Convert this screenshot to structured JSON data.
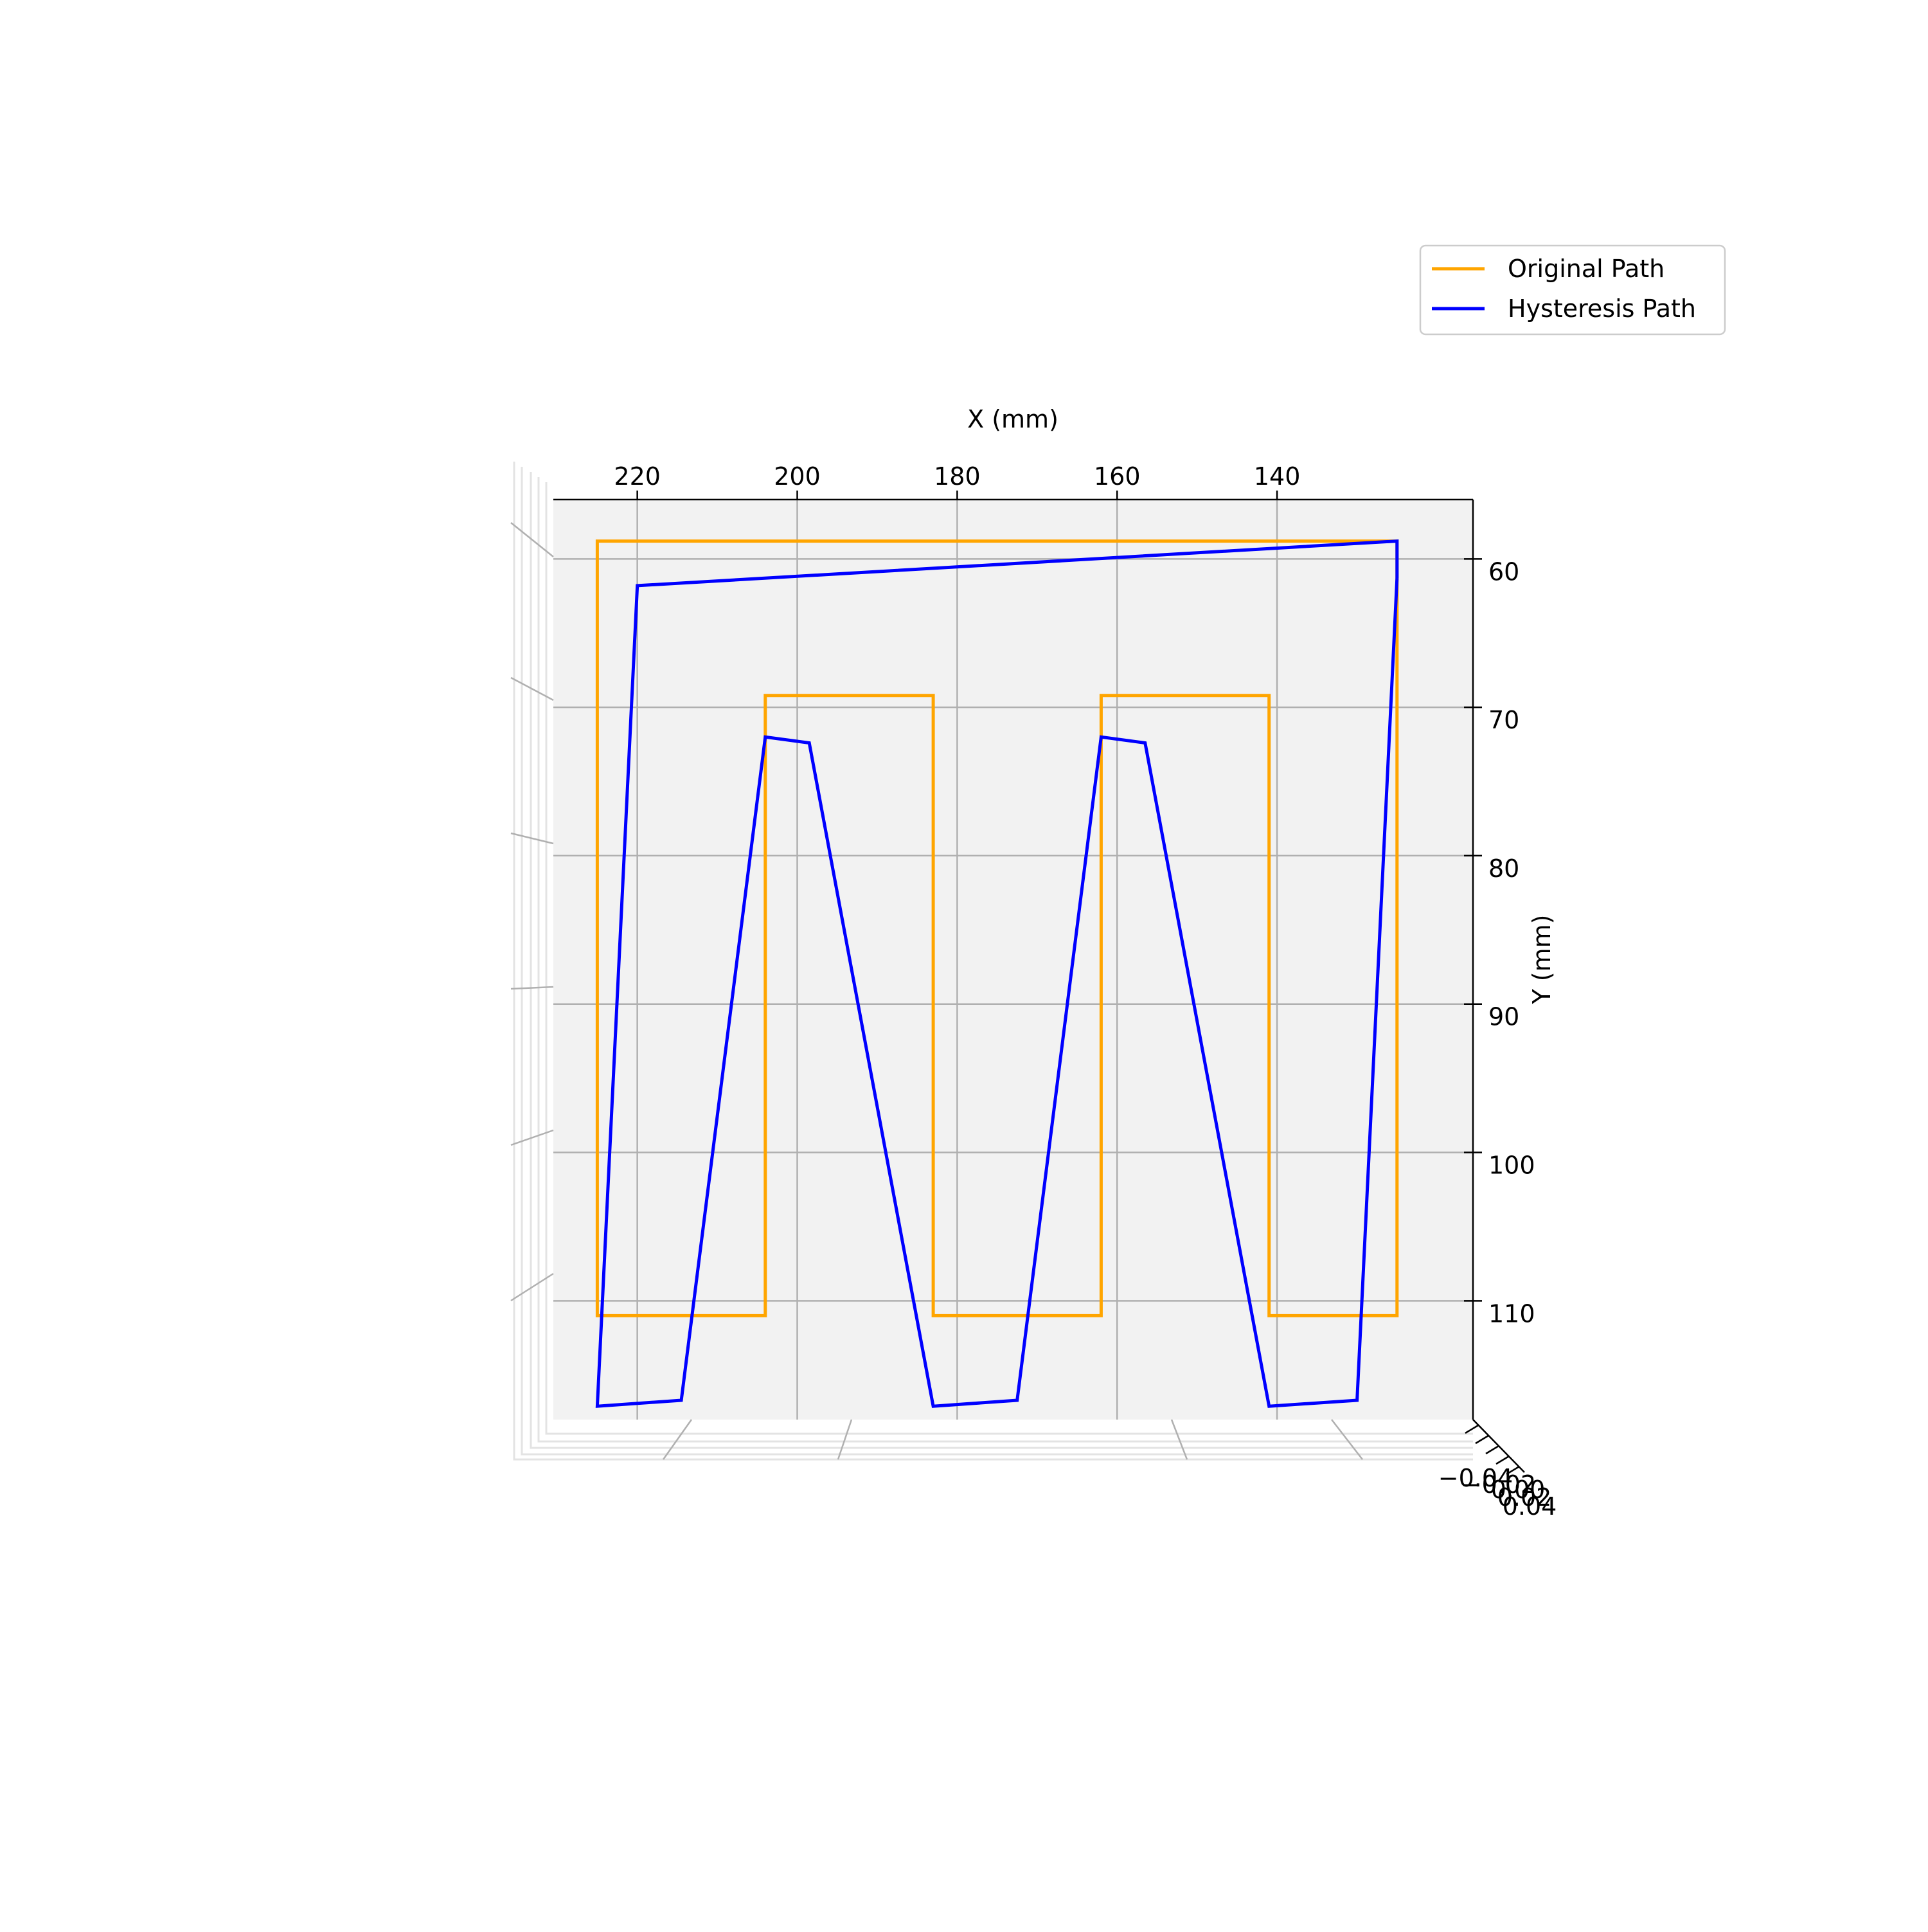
{
  "chart_data": {
    "type": "line",
    "view": "3d-top",
    "title": "",
    "xlabel": "X (mm)",
    "ylabel": "Y (mm)",
    "zlabel": "",
    "xlim": [
      230.5,
      115.5
    ],
    "ylim": [
      56,
      118
    ],
    "xticks": [
      {
        "value": 220,
        "label": "220"
      },
      {
        "value": 200,
        "label": "200"
      },
      {
        "value": 180,
        "label": "180"
      },
      {
        "value": 160,
        "label": "160"
      },
      {
        "value": 140,
        "label": "140"
      }
    ],
    "yticks": [
      {
        "value": 60,
        "label": "60"
      },
      {
        "value": 70,
        "label": "70"
      },
      {
        "value": 80,
        "label": "80"
      },
      {
        "value": 90,
        "label": "90"
      },
      {
        "value": 100,
        "label": "100"
      },
      {
        "value": 110,
        "label": "110"
      }
    ],
    "zticks": [
      "−0.04",
      "−0.02",
      "0.00",
      "0.02",
      "0.04"
    ],
    "grid": true,
    "legend_position": "top-right",
    "series": [
      {
        "name": "Original Path",
        "color": "#FFA500",
        "x": [
          125,
          225,
          225,
          204,
          204,
          183,
          183,
          162,
          162,
          141,
          141,
          125,
          125,
          225
        ],
        "y": [
          58.8,
          58.8,
          111,
          111,
          69.2,
          69.2,
          111,
          111,
          69.2,
          69.2,
          111,
          111,
          58.8,
          58.8
        ]
      },
      {
        "name": "Hysteresis Path",
        "color": "#0000FF",
        "x": [
          125,
          130,
          141,
          156.5,
          162,
          172.5,
          183,
          198.5,
          204,
          214.5,
          225,
          220,
          125,
          125
        ],
        "y": [
          61.3,
          116.7,
          117.1,
          72.4,
          72.0,
          116.7,
          117.1,
          72.4,
          72.0,
          116.7,
          117.1,
          61.8,
          58.8,
          61.3
        ]
      }
    ]
  }
}
